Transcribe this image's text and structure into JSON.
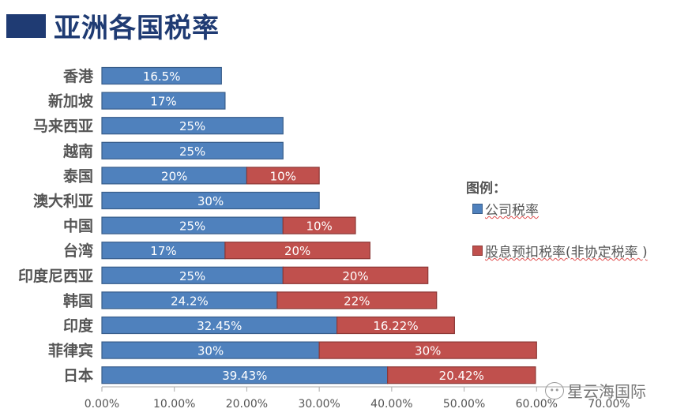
{
  "title": "亚洲各国税率",
  "chart_data": {
    "type": "bar",
    "orientation": "horizontal",
    "stacked": true,
    "title": "亚洲各国税率",
    "categories": [
      "香港",
      "新加坡",
      "马来西亚",
      "越南",
      "泰国",
      "澳大利亚",
      "中国",
      "台湾",
      "印度尼西亚",
      "韩国",
      "印度",
      "菲律宾",
      "日本"
    ],
    "series": [
      {
        "name": "公司税率",
        "color": "#4f81bd",
        "values": [
          16.5,
          17,
          25,
          25,
          20,
          30,
          25,
          17,
          25,
          24.2,
          32.45,
          30,
          39.43
        ],
        "labels": [
          "16.5%",
          "17%",
          "25%",
          "25%",
          "20%",
          "30%",
          "25%",
          "17%",
          "25%",
          "24.2%",
          "32.45%",
          "30%",
          "39.43%"
        ]
      },
      {
        "name": "股息预扣税率(非协定税率 )",
        "color": "#c0504d",
        "values": [
          null,
          null,
          null,
          null,
          10,
          null,
          10,
          20,
          20,
          22,
          16.22,
          30,
          20.42
        ],
        "labels": [
          null,
          null,
          null,
          null,
          "10%",
          null,
          "10%",
          "20%",
          "20%",
          "22%",
          "16.22%",
          "30%",
          "20.42%"
        ]
      }
    ],
    "xlim": [
      0,
      70
    ],
    "xticks": [
      "0.00%",
      "10.00%",
      "20.00%",
      "30.00%",
      "40.00%",
      "50.00%",
      "60.00%",
      "70.00%"
    ],
    "legend_title": "图例：",
    "legend_position": "right"
  },
  "watermark": "星云海国际"
}
